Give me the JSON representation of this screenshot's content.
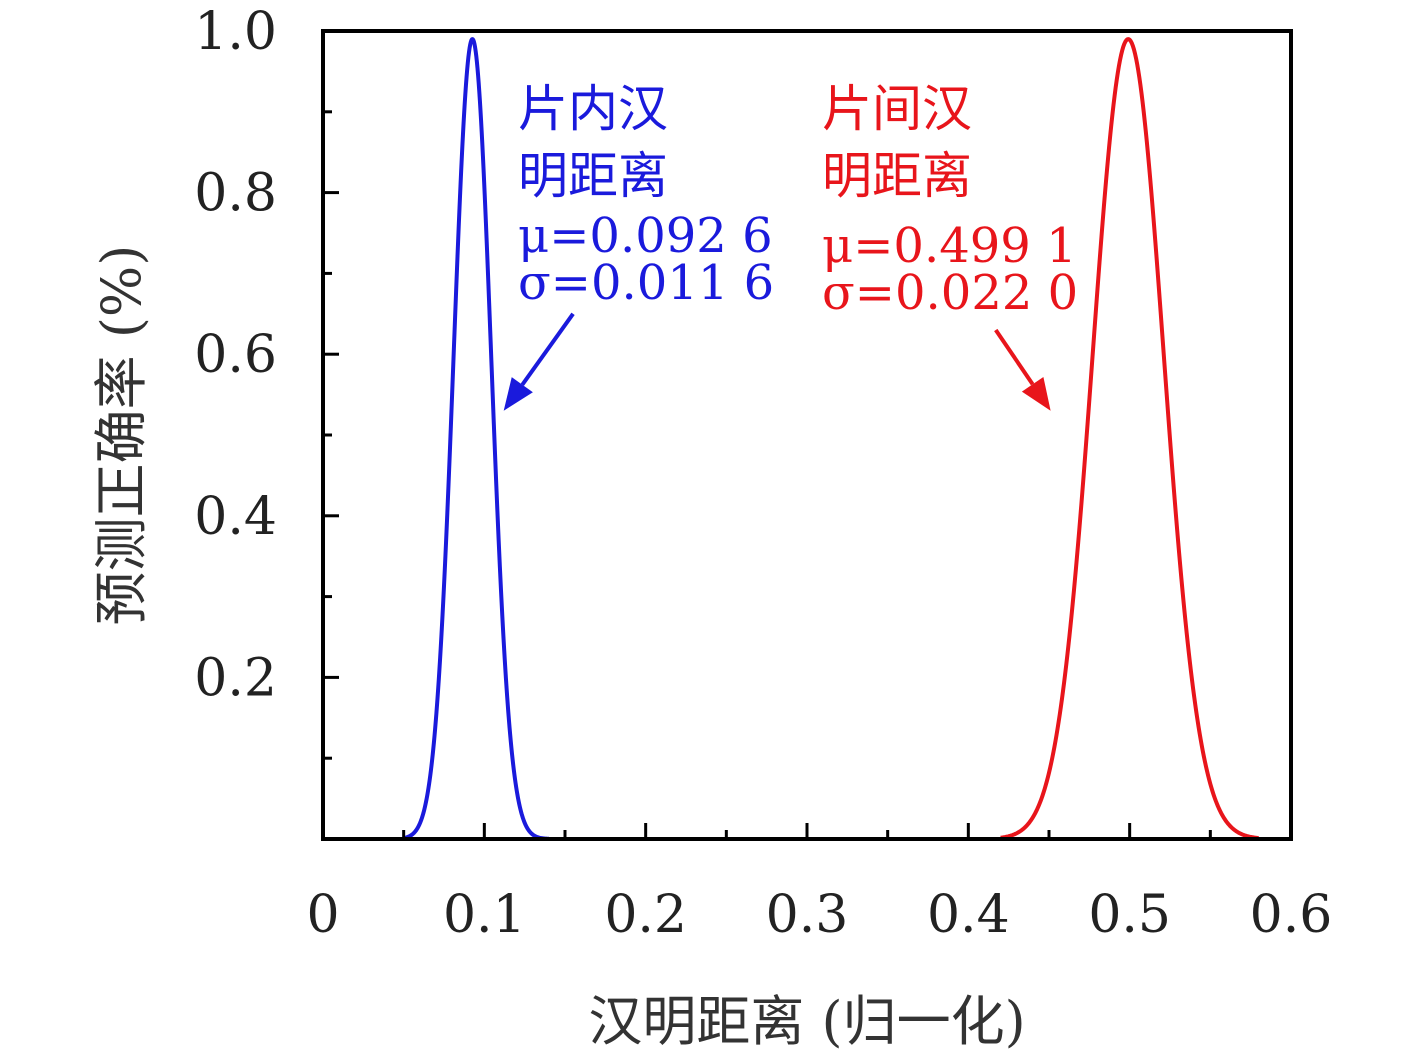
{
  "chart_data": {
    "type": "line",
    "xlabel": "汉明距离 (归一化)",
    "ylabel": "预测正确率 (%)",
    "xlim": [
      0,
      0.6
    ],
    "ylim": [
      0,
      1.0
    ],
    "x_ticks": [
      "0",
      "0.1",
      "0.2",
      "0.3",
      "0.4",
      "0.5",
      "0.6"
    ],
    "y_ticks": [
      "0.2",
      "0.4",
      "0.6",
      "0.8",
      "1.0"
    ],
    "grid": false,
    "series": [
      {
        "name": "片内汉明距离",
        "color": "#1a1adc",
        "mu": 0.0926,
        "sigma": 0.0116,
        "peak": 0.99,
        "x_range": [
          0.05,
          0.14
        ],
        "label_lines": [
          "片内汉",
          "明距离"
        ],
        "stat_lines": [
          "μ=0.092 6",
          "σ=0.011 6"
        ],
        "arrow_from": [
          0.155,
          0.65
        ],
        "arrow_to": [
          0.112,
          0.53
        ]
      },
      {
        "name": "片间汉明距离",
        "color": "#e8151b",
        "mu": 0.4991,
        "sigma": 0.022,
        "peak": 0.99,
        "x_range": [
          0.42,
          0.58
        ],
        "label_lines": [
          "片间汉",
          "明距离"
        ],
        "stat_lines": [
          "μ=0.499 1",
          "σ=0.022 0"
        ],
        "arrow_from": [
          0.417,
          0.63
        ],
        "arrow_to": [
          0.451,
          0.53
        ]
      }
    ]
  }
}
